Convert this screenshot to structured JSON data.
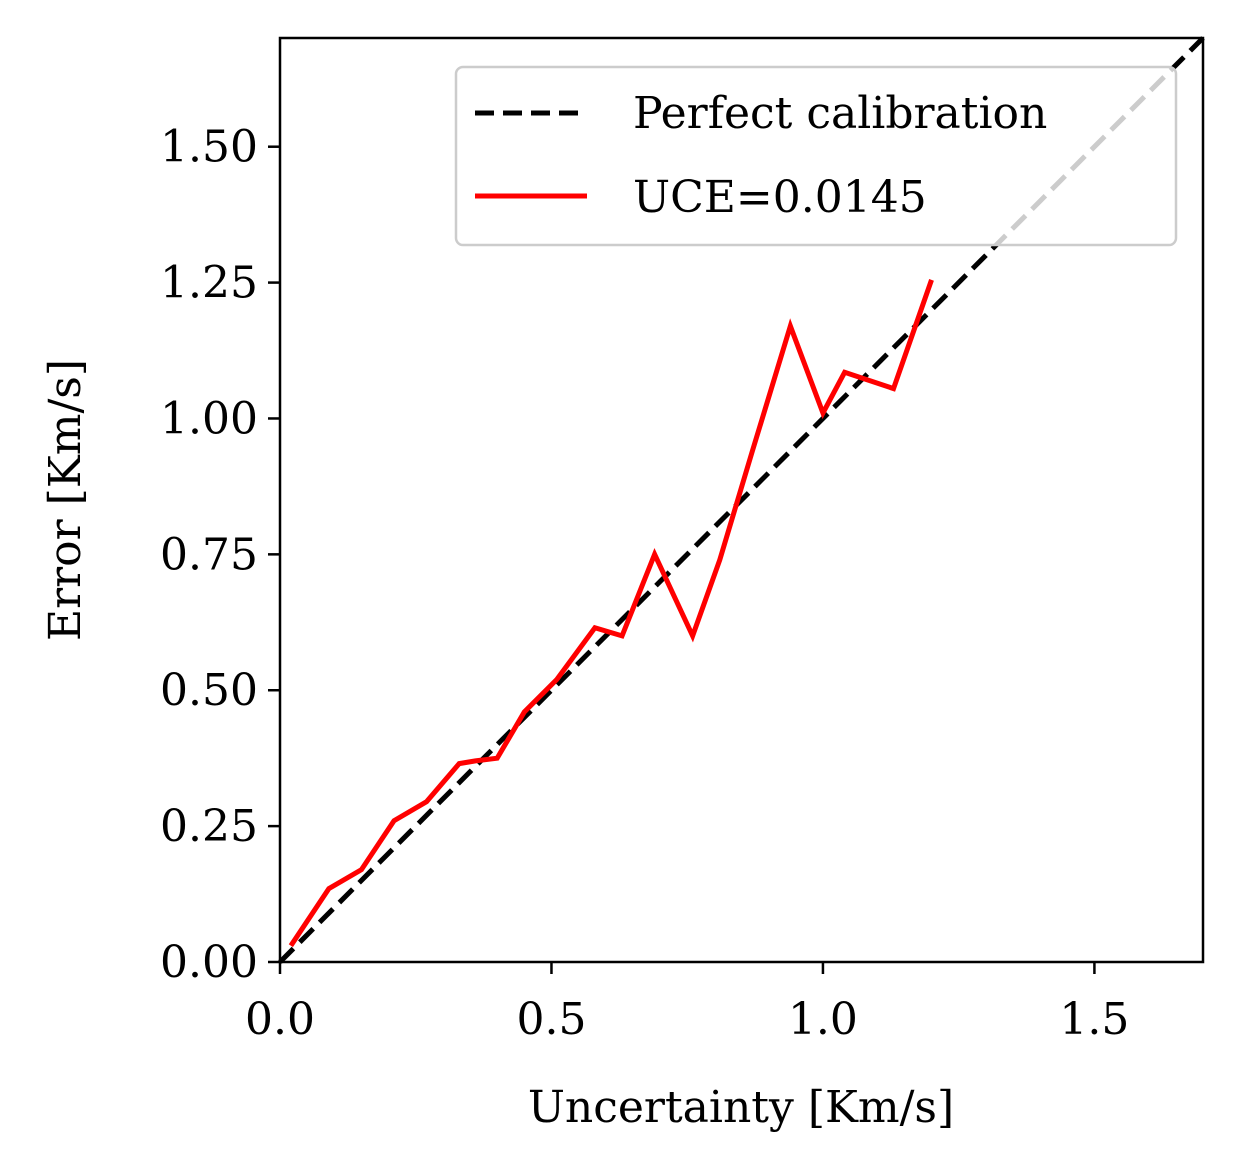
{
  "chart_data": {
    "type": "line",
    "title": "",
    "xlabel": "Uncertainty [Km/s]",
    "ylabel": "Error [Km/s]",
    "xlim": [
      0.0,
      1.7
    ],
    "ylim": [
      0.0,
      1.7
    ],
    "xticks": [
      0.0,
      0.5,
      1.0,
      1.5
    ],
    "xtick_labels": [
      "0.0",
      "0.5",
      "1.0",
      "1.5"
    ],
    "yticks": [
      0.0,
      0.25,
      0.5,
      0.75,
      1.0,
      1.25,
      1.5
    ],
    "ytick_labels": [
      "0.00",
      "0.25",
      "0.50",
      "0.75",
      "1.00",
      "1.25",
      "1.50"
    ],
    "legend_position": "top-right",
    "series": [
      {
        "name": "Perfect calibration",
        "style": "dashed",
        "color": "#000000",
        "note": "identity line y = x, fades to light grey behind the legend",
        "x": [
          0.0,
          1.7
        ],
        "y": [
          0.0,
          1.7
        ]
      },
      {
        "name": "UCE=0.0145",
        "style": "solid",
        "color": "#ff0000",
        "x": [
          0.02,
          0.09,
          0.15,
          0.21,
          0.27,
          0.33,
          0.36,
          0.4,
          0.45,
          0.51,
          0.58,
          0.63,
          0.69,
          0.76,
          0.81,
          0.87,
          0.94,
          1.0,
          1.04,
          1.13,
          1.2
        ],
        "y": [
          0.03,
          0.135,
          0.17,
          0.26,
          0.295,
          0.365,
          0.37,
          0.375,
          0.46,
          0.52,
          0.615,
          0.6,
          0.75,
          0.6,
          0.74,
          0.94,
          1.17,
          1.01,
          1.085,
          1.055,
          1.255
        ]
      }
    ]
  }
}
